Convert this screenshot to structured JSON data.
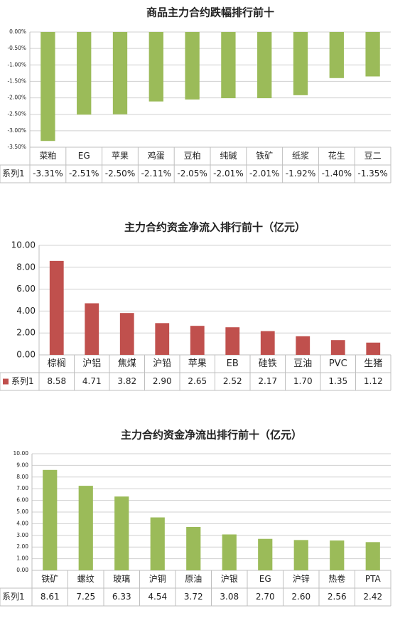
{
  "chart_data": [
    {
      "type": "bar",
      "title": "商品主力合约跌幅排行前十",
      "categories": [
        "菜粕",
        "EG",
        "苹果",
        "鸡蛋",
        "豆粕",
        "纯碱",
        "铁矿",
        "纸浆",
        "花生",
        "豆二"
      ],
      "series": [
        {
          "name": "系列1",
          "color": "#9bbb59",
          "values": [
            -3.31,
            -2.51,
            -2.5,
            -2.11,
            -2.05,
            -2.01,
            -2.01,
            -1.92,
            -1.4,
            -1.35
          ],
          "value_labels": [
            "-3.31%",
            "-2.51%",
            "-2.50%",
            "-2.11%",
            "-2.05%",
            "-2.01%",
            "-2.01%",
            "-1.92%",
            "-1.40%",
            "-1.35%"
          ]
        }
      ],
      "ylim": [
        -3.5,
        0
      ],
      "yticks": [
        {
          "value": 0,
          "label": "0.00%"
        },
        {
          "value": -0.5,
          "label": "-0.50%"
        },
        {
          "value": -1,
          "label": "-1.00%"
        },
        {
          "value": -1.5,
          "label": "-1.50%"
        },
        {
          "value": -2,
          "label": "-2.00%"
        },
        {
          "value": -2.5,
          "label": "-2.50%"
        },
        {
          "value": -3,
          "label": "-3.00%"
        },
        {
          "value": -3.5,
          "label": "-3.50%"
        }
      ],
      "grid": true
    },
    {
      "type": "bar",
      "title": "主力合约资金净流入排行前十（亿元）",
      "categories": [
        "棕榈",
        "沪铝",
        "焦煤",
        "沪铅",
        "苹果",
        "EB",
        "硅铁",
        "豆油",
        "PVC",
        "生猪"
      ],
      "series": [
        {
          "name": "系列1",
          "color": "#c0504d",
          "values": [
            8.58,
            4.71,
            3.82,
            2.9,
            2.65,
            2.52,
            2.17,
            1.7,
            1.35,
            1.12
          ],
          "value_labels": [
            "8.58",
            "4.71",
            "3.82",
            "2.90",
            "2.65",
            "2.52",
            "2.17",
            "1.70",
            "1.35",
            "1.12"
          ]
        }
      ],
      "ylim": [
        0,
        10
      ],
      "yticks": [
        {
          "value": 0,
          "label": "0.00"
        },
        {
          "value": 2,
          "label": "2.00"
        },
        {
          "value": 4,
          "label": "4.00"
        },
        {
          "value": 6,
          "label": "6.00"
        },
        {
          "value": 8,
          "label": "8.00"
        },
        {
          "value": 10,
          "label": "10.00"
        }
      ],
      "grid": true,
      "legend_marker": true
    },
    {
      "type": "bar",
      "title": "主力合约资金净流出排行前十（亿元）",
      "categories": [
        "铁矿",
        "螺纹",
        "玻璃",
        "沪铜",
        "原油",
        "沪银",
        "EG",
        "沪锌",
        "热卷",
        "PTA"
      ],
      "series": [
        {
          "name": "系列1",
          "color": "#9bbb59",
          "values": [
            8.61,
            7.25,
            6.33,
            4.54,
            3.72,
            3.08,
            2.7,
            2.6,
            2.56,
            2.42
          ],
          "value_labels": [
            "8.61",
            "7.25",
            "6.33",
            "4.54",
            "3.72",
            "3.08",
            "2.70",
            "2.60",
            "2.56",
            "2.42"
          ]
        }
      ],
      "ylim": [
        0,
        10
      ],
      "yticks": [
        {
          "value": 0,
          "label": "0.00"
        },
        {
          "value": 1,
          "label": "1.00"
        },
        {
          "value": 2,
          "label": "2.00"
        },
        {
          "value": 3,
          "label": "3.00"
        },
        {
          "value": 4,
          "label": "4.00"
        },
        {
          "value": 5,
          "label": "5.00"
        },
        {
          "value": 6,
          "label": "6.00"
        },
        {
          "value": 7,
          "label": "7.00"
        },
        {
          "value": 8,
          "label": "8.00"
        },
        {
          "value": 9,
          "label": "9.00"
        },
        {
          "value": 10,
          "label": "10.00"
        }
      ],
      "grid": true
    }
  ]
}
